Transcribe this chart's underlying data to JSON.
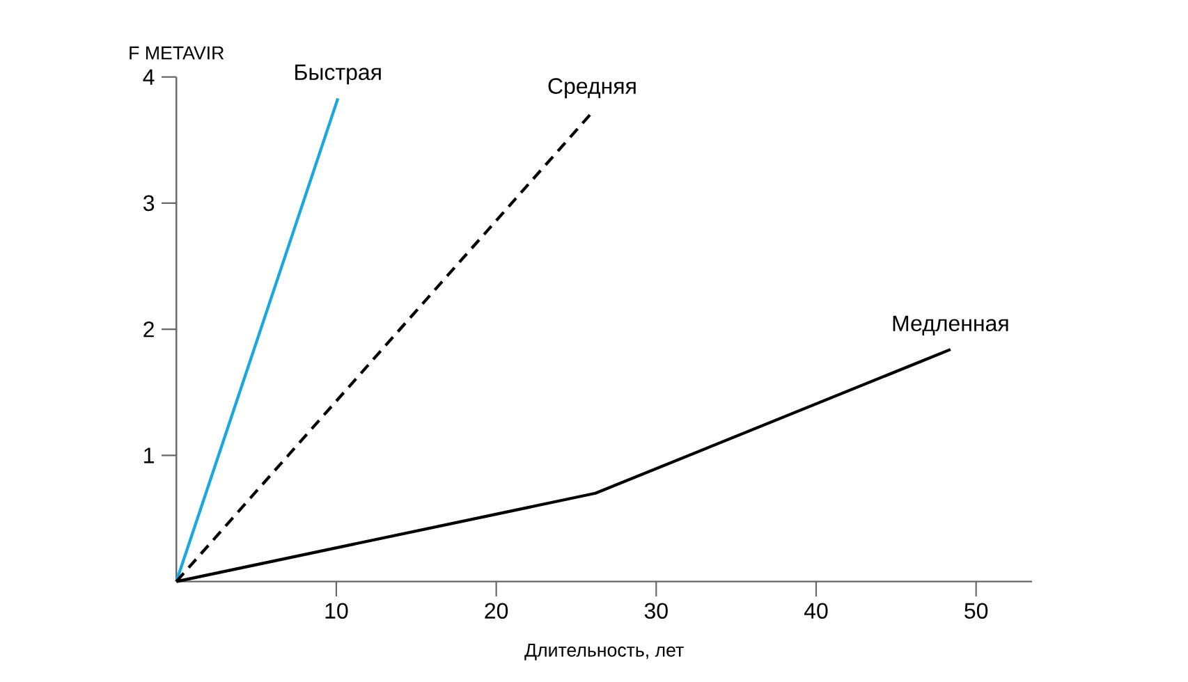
{
  "chart_data": {
    "type": "line",
    "xlabel": "Длительность, лет",
    "ylabel": "F METAVIR",
    "xlim": [
      0,
      53.5
    ],
    "ylim": [
      0,
      4
    ],
    "xticks": [
      10,
      20,
      30,
      40,
      50
    ],
    "yticks": [
      1,
      2,
      3,
      4
    ],
    "legend": false,
    "grid": false,
    "marker": "none",
    "series": [
      {
        "name": "Быстрая",
        "color": "#1aa7e0",
        "line_style": "solid",
        "x": [
          0,
          10.1
        ],
        "values": [
          0,
          3.83
        ]
      },
      {
        "name": "Средняя",
        "color": "#000000",
        "line_style": "dashed",
        "x": [
          0,
          26
        ],
        "values": [
          0,
          3.72
        ]
      },
      {
        "name": "Медленная",
        "color": "#000000",
        "line_style": "solid",
        "x": [
          0,
          26.2,
          48.4
        ],
        "values": [
          0,
          0.7,
          1.84
        ]
      }
    ]
  }
}
